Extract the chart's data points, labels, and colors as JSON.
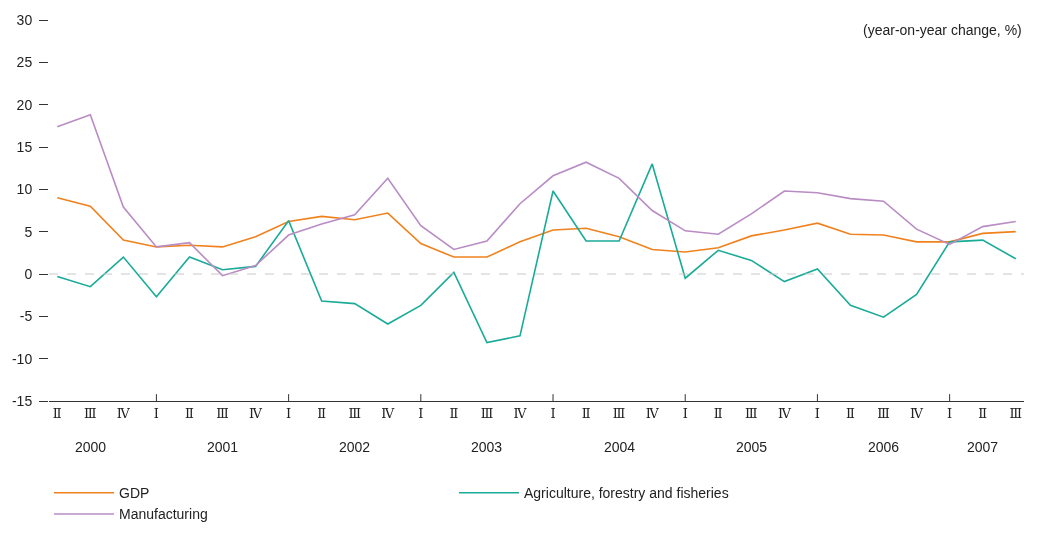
{
  "chart_data": {
    "type": "line",
    "ylabel": "(year-on-year change, %)",
    "categories": [
      "Ⅱ",
      "Ⅲ",
      "Ⅳ",
      "Ⅰ",
      "Ⅱ",
      "Ⅲ",
      "Ⅳ",
      "Ⅰ",
      "Ⅱ",
      "Ⅲ",
      "Ⅳ",
      "Ⅰ",
      "Ⅱ",
      "Ⅲ",
      "Ⅳ",
      "Ⅰ",
      "Ⅱ",
      "Ⅲ",
      "Ⅳ",
      "Ⅰ",
      "Ⅱ",
      "Ⅲ",
      "Ⅳ",
      "Ⅰ",
      "Ⅱ",
      "Ⅲ",
      "Ⅳ",
      "Ⅰ",
      "Ⅱ",
      "Ⅲ"
    ],
    "annotations": [
      "2000",
      "2001",
      "2002",
      "2003",
      "2004",
      "2005",
      "2006",
      "2007"
    ],
    "series": [
      {
        "name": "GDP",
        "color": "#f0821e",
        "values": [
          9.0,
          8.0,
          4.0,
          3.2,
          3.4,
          3.2,
          4.4,
          6.2,
          6.8,
          6.4,
          7.2,
          3.6,
          2.0,
          2.0,
          3.8,
          5.2,
          5.4,
          4.4,
          2.9,
          2.6,
          3.1,
          4.5,
          5.2,
          6.0,
          4.7,
          4.6,
          3.8,
          3.8,
          4.8,
          5.0
        ]
      },
      {
        "name": "Agriculture, forestry and fisheries",
        "color": "#1aab98",
        "values": [
          -0.3,
          -1.5,
          2.0,
          -2.7,
          2.0,
          0.5,
          0.9,
          6.3,
          -3.2,
          -3.5,
          -5.9,
          -3.7,
          0.2,
          -8.1,
          -7.3,
          9.8,
          3.9,
          3.9,
          13.0,
          -0.5,
          2.8,
          1.6,
          -0.9,
          0.6,
          -3.7,
          -5.1,
          -2.4,
          3.8,
          4.0,
          1.8
        ]
      },
      {
        "name": "Manufacturing",
        "color": "#b98cc4",
        "values": [
          17.4,
          18.8,
          7.9,
          3.2,
          3.7,
          -0.2,
          1.0,
          4.6,
          5.9,
          7.0,
          11.3,
          5.7,
          2.9,
          3.9,
          8.3,
          11.6,
          13.2,
          11.3,
          7.5,
          5.1,
          4.7,
          7.1,
          9.8,
          9.6,
          8.9,
          8.6,
          5.3,
          3.5,
          5.6,
          6.2
        ]
      }
    ],
    "ylim": [
      -15,
      30
    ],
    "yticks": [
      -15,
      -10,
      -5,
      0,
      5,
      10,
      15,
      20,
      25,
      30
    ],
    "ref_lines": [
      {
        "axis": "y",
        "value": 0,
        "color": "#c8c8c8",
        "line_style": "dashed"
      }
    ],
    "grid": false,
    "legend": "bottom",
    "marker": "none",
    "line_style": "solid"
  }
}
